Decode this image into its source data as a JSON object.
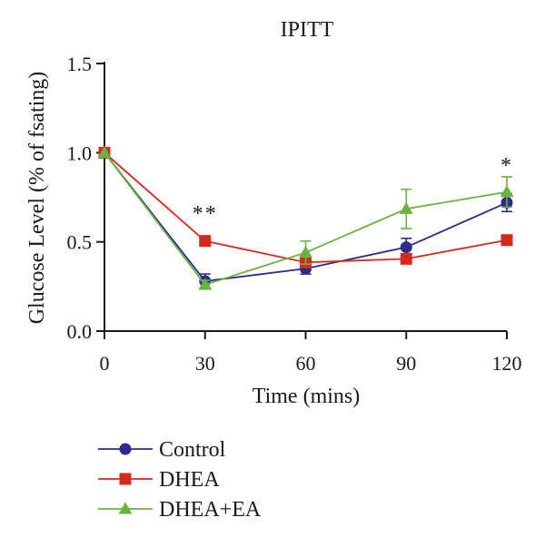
{
  "chart_data": {
    "type": "line",
    "title": "IPITT",
    "xlabel": "Time (mins)",
    "ylabel": "Glucose Level (% of fsating)",
    "x": [
      0,
      30,
      60,
      90,
      120
    ],
    "xticks": [
      "0",
      "30",
      "60",
      "90",
      "120"
    ],
    "yticks": [
      "0.0",
      "0.5",
      "1.0",
      "1.5"
    ],
    "xlim": [
      0,
      120
    ],
    "ylim": [
      0,
      1.5
    ],
    "grid": false,
    "legend_position": "bottom",
    "series": [
      {
        "name": "Control",
        "marker": "circle",
        "color": "#2e2a8c",
        "values": [
          1.0,
          0.28,
          0.35,
          0.47,
          0.72
        ],
        "errors": [
          0,
          0.04,
          0.03,
          0.05,
          0.05
        ]
      },
      {
        "name": "DHEA",
        "marker": "square",
        "color": "#d42a1e",
        "values": [
          1.0,
          0.505,
          0.385,
          0.405,
          0.51
        ],
        "errors": [
          0,
          0,
          0,
          0,
          0
        ]
      },
      {
        "name": "DHEA+EA",
        "marker": "triangle",
        "color": "#6ab33e",
        "values": [
          1.0,
          0.26,
          0.44,
          0.685,
          0.78
        ],
        "errors": [
          0,
          0.025,
          0.065,
          0.11,
          0.085
        ]
      }
    ],
    "annotations": [
      {
        "text": "**",
        "x": 30,
        "y": 0.66
      },
      {
        "text": "*",
        "x": 120,
        "y": 0.93
      }
    ]
  }
}
